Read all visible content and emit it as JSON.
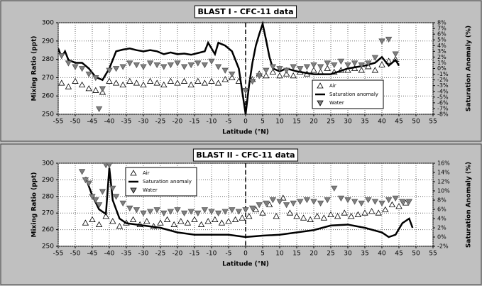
{
  "chart_data": [
    {
      "type": "scatter",
      "title": "BLAST I - CFC-11 data",
      "xlabel": "Latitude  (°N)",
      "ylabel": "Mixing Ratio  (ppt)",
      "y2label": "Saturation Anomaly  (%)",
      "xlim": [
        -55,
        55
      ],
      "xticks": [
        -55,
        -50,
        -45,
        -40,
        -35,
        -30,
        -25,
        -20,
        -15,
        -10,
        -5,
        0,
        5,
        10,
        15,
        20,
        25,
        30,
        35,
        40,
        45,
        50,
        55
      ],
      "ylim": [
        250,
        300
      ],
      "yticks": [
        250,
        260,
        270,
        280,
        290,
        300
      ],
      "y2lim": [
        -8,
        8
      ],
      "y2ticks": [
        {
          "value": -8,
          "label": "-8%"
        },
        {
          "value": -7,
          "label": "-7%"
        },
        {
          "value": -6,
          "label": "-6%"
        },
        {
          "value": -5,
          "label": "-5%"
        },
        {
          "value": -4,
          "label": "-4%"
        },
        {
          "value": -3,
          "label": "-3%"
        },
        {
          "value": -2,
          "label": "-2%"
        },
        {
          "value": -1,
          "label": "-1%"
        },
        {
          "value": 0,
          "label": "0%"
        },
        {
          "value": 1,
          "label": "1%"
        },
        {
          "value": 2,
          "label": "2%"
        },
        {
          "value": 3,
          "label": "3%"
        },
        {
          "value": 4,
          "label": "4%"
        },
        {
          "value": 5,
          "label": "5%"
        },
        {
          "value": 6,
          "label": "6%"
        },
        {
          "value": 7,
          "label": "7%"
        },
        {
          "value": 8,
          "label": "8%"
        }
      ],
      "grid": true,
      "legend": "lower right",
      "series": [
        {
          "name": "Air",
          "marker": "triangle-up",
          "color": "#ffffff",
          "x": [
            -54,
            -52,
            -50,
            -48,
            -46,
            -44,
            -42,
            -40,
            -38,
            -36,
            -34,
            -32,
            -30,
            -28,
            -26,
            -24,
            -22,
            -20,
            -18,
            -16,
            -14,
            -12,
            -10,
            -8,
            -6,
            -4,
            -2,
            2,
            4,
            6,
            8,
            10,
            12,
            14,
            16,
            18,
            20,
            22,
            24,
            26,
            28,
            30,
            32,
            34,
            36,
            38,
            40,
            42,
            44
          ],
          "values": [
            267,
            265,
            268,
            266,
            264,
            263,
            262,
            268,
            267,
            266,
            268,
            267,
            266,
            268,
            267,
            266,
            268,
            267,
            268,
            266,
            268,
            267,
            268,
            267,
            269,
            270,
            268,
            269,
            272,
            271,
            273,
            271,
            272,
            271,
            273,
            272,
            274,
            273,
            275,
            273,
            274,
            274,
            275,
            274,
            276,
            274,
            277,
            279,
            280
          ]
        },
        {
          "name": "Saturation anomaly",
          "marker": "line",
          "color": "#000000",
          "axis": "y2",
          "x": [
            -55,
            -54,
            -53,
            -52,
            -50,
            -48,
            -46,
            -44,
            -42,
            -40,
            -39,
            -38,
            -36,
            -34,
            -32,
            -30,
            -28,
            -26,
            -24,
            -22,
            -20,
            -18,
            -16,
            -14,
            -12,
            -11,
            -10,
            -9,
            -8,
            -6,
            -4,
            -2,
            -1,
            0,
            1,
            2,
            3,
            4,
            5,
            6,
            7,
            8,
            10,
            12,
            15,
            20,
            25,
            30,
            35,
            38,
            40,
            42,
            44,
            45
          ],
          "values": [
            3.5,
            2,
            3,
            1.5,
            1,
            1,
            0,
            -1.5,
            -2,
            0,
            1.5,
            3,
            3.3,
            3.5,
            3.2,
            3,
            3.2,
            3,
            2.5,
            2.8,
            2.5,
            2.6,
            2.4,
            2.7,
            3,
            4.5,
            3.5,
            2.5,
            4.5,
            4,
            3,
            0,
            -4,
            -8,
            -3,
            1,
            4,
            6,
            7.8,
            5,
            2,
            0,
            -0.5,
            0,
            -0.5,
            -1,
            -1,
            0,
            0.5,
            1,
            2,
            0.5,
            1.5,
            0.5
          ]
        },
        {
          "name": "Water",
          "marker": "triangle-down",
          "color": "#808080",
          "x": [
            -54,
            -52,
            -50,
            -48,
            -46,
            -44,
            -43,
            -42,
            -40,
            -38,
            -36,
            -34,
            -32,
            -30,
            -28,
            -26,
            -24,
            -22,
            -20,
            -18,
            -16,
            -14,
            -12,
            -10,
            -8,
            -6,
            -4,
            0,
            2,
            4,
            6,
            8,
            10,
            12,
            14,
            16,
            18,
            20,
            22,
            24,
            26,
            28,
            30,
            32,
            34,
            36,
            38,
            40,
            42,
            44
          ],
          "values": [
            282,
            278,
            276,
            275,
            272,
            270,
            253,
            264,
            274,
            275,
            276,
            278,
            277,
            276,
            278,
            277,
            276,
            277,
            278,
            276,
            277,
            278,
            277,
            279,
            276,
            274,
            272,
            263,
            268,
            271,
            274,
            276,
            275,
            274,
            276,
            275,
            276,
            277,
            276,
            278,
            277,
            279,
            277,
            278,
            277,
            278,
            281,
            290,
            291,
            283
          ]
        }
      ]
    },
    {
      "type": "scatter",
      "title": "BLAST II - CFC-11 data",
      "xlabel": "Latitude  (°N)",
      "ylabel": "Mixing Ratio  (ppt)",
      "y2label": "Saturation Anomaly  (%)",
      "xlim": [
        -55,
        55
      ],
      "xticks": [
        -55,
        -50,
        -45,
        -40,
        -35,
        -30,
        -25,
        -20,
        -15,
        -10,
        -5,
        0,
        5,
        10,
        15,
        20,
        25,
        30,
        35,
        40,
        45,
        50,
        55
      ],
      "ylim": [
        250,
        300
      ],
      "yticks": [
        250,
        260,
        270,
        280,
        290,
        300
      ],
      "y2lim": [
        -2,
        16
      ],
      "y2ticks": [
        {
          "value": -2,
          "label": "-2%"
        },
        {
          "value": 0,
          "label": "0%"
        },
        {
          "value": 2,
          "label": "2%"
        },
        {
          "value": 4,
          "label": "4%"
        },
        {
          "value": 6,
          "label": "6%"
        },
        {
          "value": 8,
          "label": "8%"
        },
        {
          "value": 10,
          "label": "10%"
        },
        {
          "value": 12,
          "label": "12%"
        },
        {
          "value": 14,
          "label": "14%"
        },
        {
          "value": 16,
          "label": "16%"
        }
      ],
      "grid": true,
      "legend": "upper left",
      "series": [
        {
          "name": "Air",
          "marker": "triangle-up",
          "color": "#ffffff",
          "x": [
            -47,
            -45,
            -43,
            -41,
            -39,
            -37,
            -35,
            -33,
            -31,
            -29,
            -27,
            -25,
            -23,
            -21,
            -19,
            -17,
            -15,
            -13,
            -11,
            -9,
            -7,
            -5,
            -3,
            -1,
            1,
            3,
            5,
            7,
            9,
            11,
            13,
            15,
            17,
            19,
            21,
            23,
            25,
            27,
            29,
            31,
            33,
            35,
            37,
            39,
            41,
            43,
            45,
            47
          ],
          "values": [
            264,
            266,
            263,
            268,
            265,
            262,
            264,
            266,
            263,
            265,
            262,
            264,
            266,
            263,
            265,
            264,
            266,
            263,
            265,
            266,
            264,
            265,
            266,
            267,
            268,
            272,
            270,
            275,
            268,
            279,
            270,
            268,
            267,
            266,
            268,
            267,
            269,
            268,
            270,
            268,
            269,
            270,
            271,
            270,
            272,
            275,
            274,
            276
          ]
        },
        {
          "name": "Saturation anomaly",
          "marker": "line",
          "color": "#000000",
          "axis": "y2",
          "x": [
            -47,
            -45,
            -43,
            -41,
            -40,
            -39,
            -37,
            -35,
            -30,
            -25,
            -20,
            -15,
            -10,
            -5,
            0,
            5,
            10,
            15,
            20,
            25,
            30,
            35,
            40,
            42,
            44,
            46,
            48,
            49
          ],
          "values": [
            13,
            9,
            6,
            5,
            15,
            8,
            4,
            3,
            2.5,
            2,
            1,
            0.5,
            0.5,
            0.5,
            0,
            0.3,
            0.5,
            1,
            1.5,
            2.5,
            2.7,
            2,
            1,
            0,
            0.5,
            3,
            4,
            2
          ]
        },
        {
          "name": "Water",
          "marker": "triangle-down",
          "color": "#808080",
          "x": [
            -48,
            -47,
            -46,
            -45,
            -44,
            -43,
            -42,
            -41,
            -40,
            -39,
            -38,
            -36,
            -34,
            -32,
            -30,
            -28,
            -26,
            -24,
            -22,
            -20,
            -18,
            -16,
            -14,
            -12,
            -10,
            -8,
            -6,
            -4,
            -2,
            0,
            2,
            4,
            6,
            8,
            10,
            12,
            14,
            16,
            18,
            20,
            22,
            24,
            26,
            28,
            30,
            32,
            34,
            36,
            38,
            40,
            42,
            44,
            46,
            48
          ],
          "values": [
            295,
            290,
            288,
            280,
            278,
            275,
            283,
            299,
            299,
            285,
            280,
            276,
            273,
            272,
            270,
            271,
            272,
            270,
            271,
            272,
            270,
            271,
            270,
            272,
            271,
            270,
            271,
            272,
            271,
            272,
            273,
            275,
            276,
            278,
            277,
            275,
            276,
            277,
            278,
            277,
            276,
            278,
            285,
            279,
            278,
            277,
            276,
            278,
            277,
            276,
            278,
            279,
            277,
            277
          ]
        }
      ]
    }
  ]
}
